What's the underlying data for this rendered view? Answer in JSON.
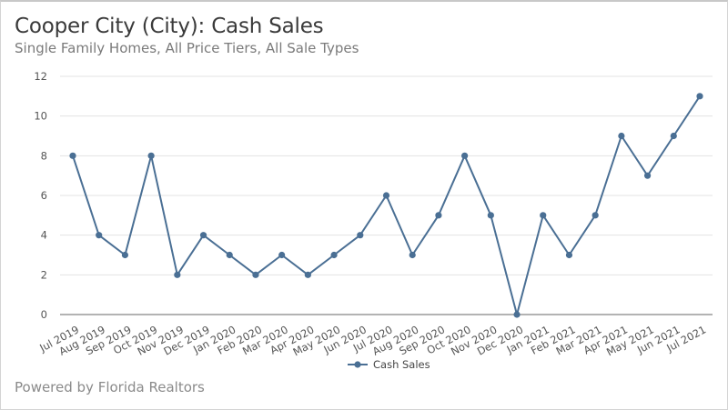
{
  "header": {
    "title": "Cooper City (City): Cash Sales",
    "subtitle": "Single Family Homes, All Price Tiers, All Sale Types"
  },
  "footer": {
    "text": "Powered by Florida Realtors"
  },
  "colors": {
    "series": "#4a6f94",
    "grid": "#e3e3e3",
    "axis": "#9a9a9a"
  },
  "chart_data": {
    "type": "line",
    "title": "Cooper City (City): Cash Sales",
    "subtitle": "Single Family Homes, All Price Tiers, All Sale Types",
    "xlabel": "",
    "ylabel": "",
    "ylim": [
      0,
      12
    ],
    "yticks": [
      0,
      2,
      4,
      6,
      8,
      10,
      12
    ],
    "grid": true,
    "legend": "bottom-center",
    "categories": [
      "Jul 2019",
      "Aug 2019",
      "Sep 2019",
      "Oct 2019",
      "Nov 2019",
      "Dec 2019",
      "Jan 2020",
      "Feb 2020",
      "Mar 2020",
      "Apr 2020",
      "May 2020",
      "Jun 2020",
      "Jul 2020",
      "Aug 2020",
      "Sep 2020",
      "Oct 2020",
      "Nov 2020",
      "Dec 2020",
      "Jan 2021",
      "Feb 2021",
      "Mar 2021",
      "Apr 2021",
      "May 2021",
      "Jun 2021",
      "Jul 2021"
    ],
    "series": [
      {
        "name": "Cash Sales",
        "values": [
          8,
          4,
          3,
          8,
          2,
          4,
          3,
          2,
          3,
          2,
          3,
          4,
          6,
          3,
          5,
          8,
          5,
          0,
          5,
          3,
          5,
          9,
          7,
          9,
          11
        ]
      }
    ]
  }
}
